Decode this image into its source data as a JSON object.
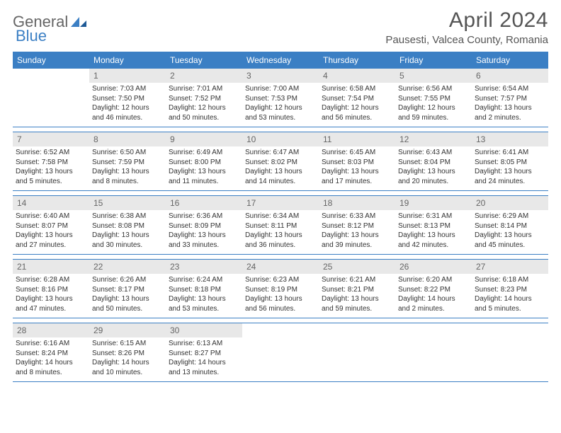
{
  "brand": {
    "part1": "General",
    "part2": "Blue"
  },
  "title": {
    "month": "April 2024",
    "location": "Pausesti, Valcea County, Romania"
  },
  "colors": {
    "accent": "#3b7fc4",
    "headerBg": "#3b7fc4",
    "numBg": "#e8e8e8",
    "text": "#333",
    "muted": "#666"
  },
  "dayHeaders": [
    "Sunday",
    "Monday",
    "Tuesday",
    "Wednesday",
    "Thursday",
    "Friday",
    "Saturday"
  ],
  "weeks": [
    [
      {
        "n": "",
        "body": ""
      },
      {
        "n": "1",
        "body": "Sunrise: 7:03 AM\nSunset: 7:50 PM\nDaylight: 12 hours and 46 minutes."
      },
      {
        "n": "2",
        "body": "Sunrise: 7:01 AM\nSunset: 7:52 PM\nDaylight: 12 hours and 50 minutes."
      },
      {
        "n": "3",
        "body": "Sunrise: 7:00 AM\nSunset: 7:53 PM\nDaylight: 12 hours and 53 minutes."
      },
      {
        "n": "4",
        "body": "Sunrise: 6:58 AM\nSunset: 7:54 PM\nDaylight: 12 hours and 56 minutes."
      },
      {
        "n": "5",
        "body": "Sunrise: 6:56 AM\nSunset: 7:55 PM\nDaylight: 12 hours and 59 minutes."
      },
      {
        "n": "6",
        "body": "Sunrise: 6:54 AM\nSunset: 7:57 PM\nDaylight: 13 hours and 2 minutes."
      }
    ],
    [
      {
        "n": "7",
        "body": "Sunrise: 6:52 AM\nSunset: 7:58 PM\nDaylight: 13 hours and 5 minutes."
      },
      {
        "n": "8",
        "body": "Sunrise: 6:50 AM\nSunset: 7:59 PM\nDaylight: 13 hours and 8 minutes."
      },
      {
        "n": "9",
        "body": "Sunrise: 6:49 AM\nSunset: 8:00 PM\nDaylight: 13 hours and 11 minutes."
      },
      {
        "n": "10",
        "body": "Sunrise: 6:47 AM\nSunset: 8:02 PM\nDaylight: 13 hours and 14 minutes."
      },
      {
        "n": "11",
        "body": "Sunrise: 6:45 AM\nSunset: 8:03 PM\nDaylight: 13 hours and 17 minutes."
      },
      {
        "n": "12",
        "body": "Sunrise: 6:43 AM\nSunset: 8:04 PM\nDaylight: 13 hours and 20 minutes."
      },
      {
        "n": "13",
        "body": "Sunrise: 6:41 AM\nSunset: 8:05 PM\nDaylight: 13 hours and 24 minutes."
      }
    ],
    [
      {
        "n": "14",
        "body": "Sunrise: 6:40 AM\nSunset: 8:07 PM\nDaylight: 13 hours and 27 minutes."
      },
      {
        "n": "15",
        "body": "Sunrise: 6:38 AM\nSunset: 8:08 PM\nDaylight: 13 hours and 30 minutes."
      },
      {
        "n": "16",
        "body": "Sunrise: 6:36 AM\nSunset: 8:09 PM\nDaylight: 13 hours and 33 minutes."
      },
      {
        "n": "17",
        "body": "Sunrise: 6:34 AM\nSunset: 8:11 PM\nDaylight: 13 hours and 36 minutes."
      },
      {
        "n": "18",
        "body": "Sunrise: 6:33 AM\nSunset: 8:12 PM\nDaylight: 13 hours and 39 minutes."
      },
      {
        "n": "19",
        "body": "Sunrise: 6:31 AM\nSunset: 8:13 PM\nDaylight: 13 hours and 42 minutes."
      },
      {
        "n": "20",
        "body": "Sunrise: 6:29 AM\nSunset: 8:14 PM\nDaylight: 13 hours and 45 minutes."
      }
    ],
    [
      {
        "n": "21",
        "body": "Sunrise: 6:28 AM\nSunset: 8:16 PM\nDaylight: 13 hours and 47 minutes."
      },
      {
        "n": "22",
        "body": "Sunrise: 6:26 AM\nSunset: 8:17 PM\nDaylight: 13 hours and 50 minutes."
      },
      {
        "n": "23",
        "body": "Sunrise: 6:24 AM\nSunset: 8:18 PM\nDaylight: 13 hours and 53 minutes."
      },
      {
        "n": "24",
        "body": "Sunrise: 6:23 AM\nSunset: 8:19 PM\nDaylight: 13 hours and 56 minutes."
      },
      {
        "n": "25",
        "body": "Sunrise: 6:21 AM\nSunset: 8:21 PM\nDaylight: 13 hours and 59 minutes."
      },
      {
        "n": "26",
        "body": "Sunrise: 6:20 AM\nSunset: 8:22 PM\nDaylight: 14 hours and 2 minutes."
      },
      {
        "n": "27",
        "body": "Sunrise: 6:18 AM\nSunset: 8:23 PM\nDaylight: 14 hours and 5 minutes."
      }
    ],
    [
      {
        "n": "28",
        "body": "Sunrise: 6:16 AM\nSunset: 8:24 PM\nDaylight: 14 hours and 8 minutes."
      },
      {
        "n": "29",
        "body": "Sunrise: 6:15 AM\nSunset: 8:26 PM\nDaylight: 14 hours and 10 minutes."
      },
      {
        "n": "30",
        "body": "Sunrise: 6:13 AM\nSunset: 8:27 PM\nDaylight: 14 hours and 13 minutes."
      },
      {
        "n": "",
        "body": ""
      },
      {
        "n": "",
        "body": ""
      },
      {
        "n": "",
        "body": ""
      },
      {
        "n": "",
        "body": ""
      }
    ]
  ]
}
